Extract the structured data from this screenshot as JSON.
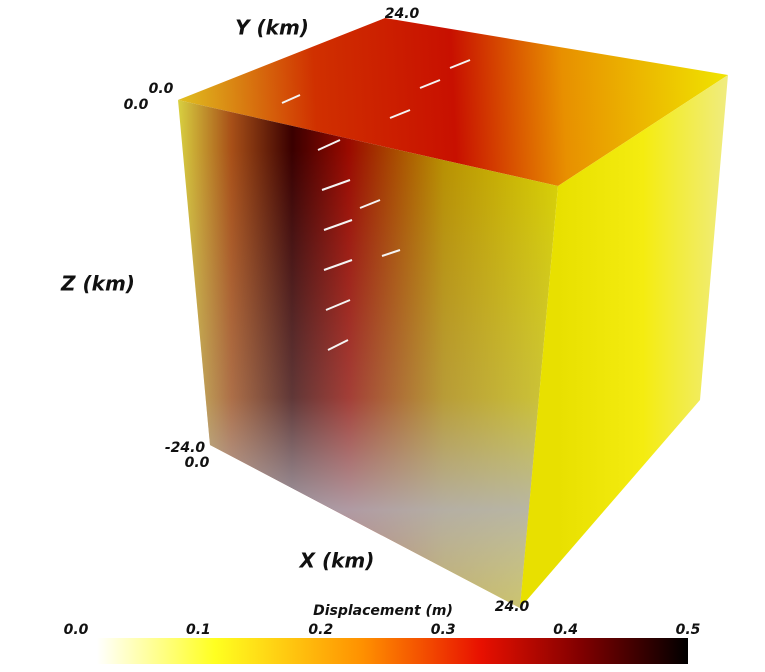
{
  "axes": {
    "y": {
      "label": "Y (km)",
      "ticks": [
        "0.0",
        "24.0"
      ]
    },
    "z": {
      "label": "Z (km)",
      "ticks": [
        "0.0",
        "-24.0"
      ]
    },
    "x": {
      "label": "X (km)",
      "ticks": [
        "0.0",
        "24.0"
      ]
    }
  },
  "colorbar": {
    "title": "Displacement (m)",
    "ticks": [
      "0.0",
      "0.1",
      "0.2",
      "0.3",
      "0.4",
      "0.5"
    ]
  }
}
